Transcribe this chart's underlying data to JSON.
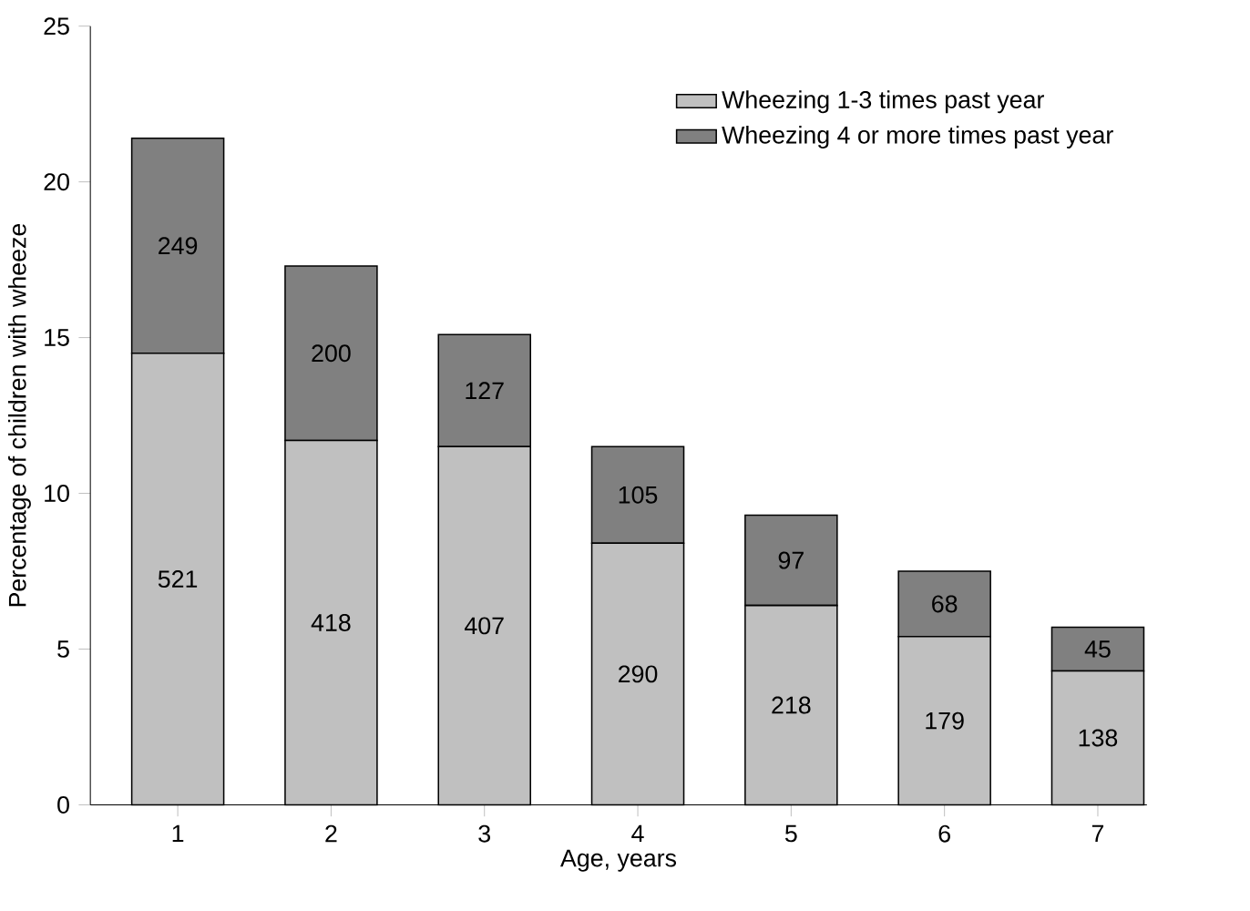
{
  "chart_data": {
    "type": "bar",
    "stacked": true,
    "xlabel": "Age, years",
    "ylabel": "Percentage of children with wheeze",
    "categories": [
      "1",
      "2",
      "3",
      "4",
      "5",
      "6",
      "7"
    ],
    "series": [
      {
        "name": "Wheezing 1-3 times past year",
        "color": "#c0c0c0",
        "values": [
          14.5,
          11.7,
          11.5,
          8.4,
          6.4,
          5.4,
          4.3
        ]
      },
      {
        "name": "Wheezing 4 or more times past year",
        "color": "#808080",
        "values": [
          6.9,
          5.6,
          3.6,
          3.1,
          2.9,
          2.1,
          1.4
        ]
      }
    ],
    "annotations": [
      "521",
      "418",
      "407",
      "290",
      "218",
      "179",
      "138",
      "249",
      "200",
      "127",
      "105",
      "97",
      "68",
      "45"
    ],
    "ylim": [
      0,
      25
    ],
    "yticks": [
      0,
      5,
      10,
      15,
      20,
      25
    ],
    "grid": false,
    "legend": "top right"
  }
}
